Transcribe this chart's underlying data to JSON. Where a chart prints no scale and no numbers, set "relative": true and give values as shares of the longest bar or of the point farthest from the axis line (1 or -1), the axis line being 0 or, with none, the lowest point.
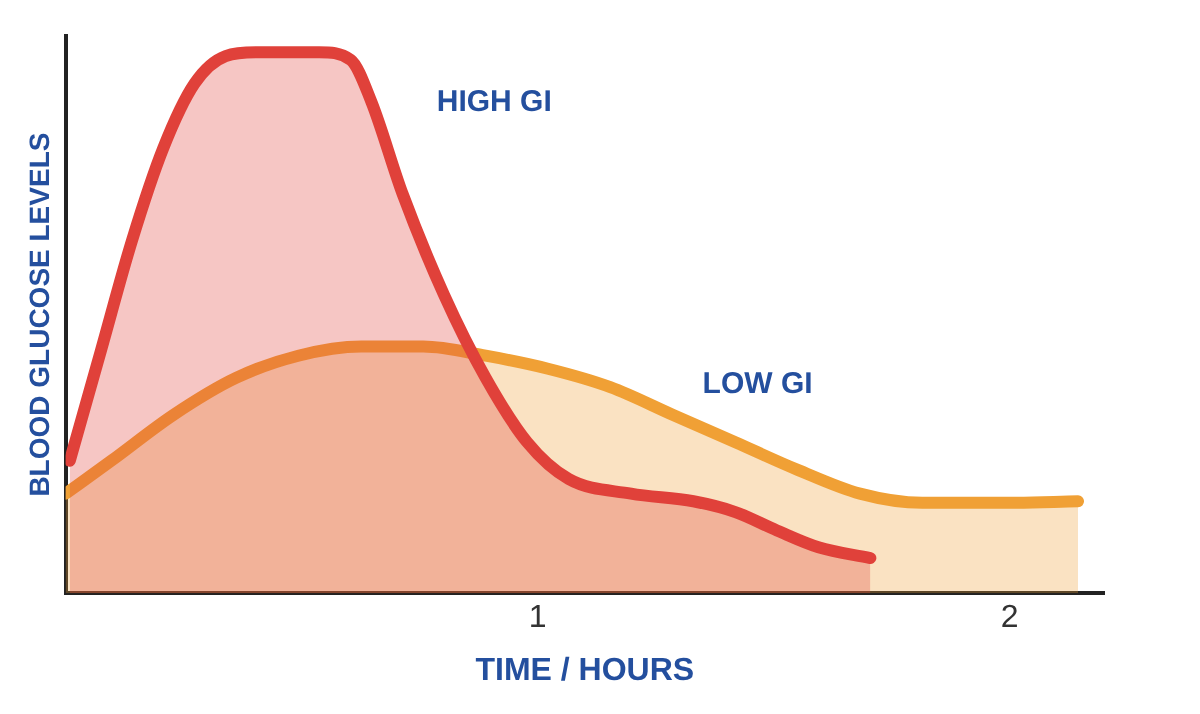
{
  "chart_data": {
    "type": "area",
    "xlabel": "TIME / HOURS",
    "ylabel": "BLOOD GLUCOSE LEVELS",
    "relative": true,
    "xlim": [
      0,
      2.2
    ],
    "xticks": [
      1,
      2
    ],
    "grid": false,
    "legend": false,
    "marker": "none",
    "line_style": "solid",
    "series": [
      {
        "name": "HIGH GI",
        "color": "#e0413a",
        "x": [
          0.009,
          0.075,
          0.141,
          0.207,
          0.273,
          0.339,
          0.405,
          0.537,
          0.604,
          0.648,
          0.714,
          0.802,
          0.89,
          0.978,
          1.066,
          1.198,
          1.33,
          1.419,
          1.507,
          1.595,
          1.705
        ],
        "values": [
          0.245,
          0.449,
          0.653,
          0.823,
          0.942,
          0.993,
          1,
          1,
          0.986,
          0.908,
          0.738,
          0.551,
          0.398,
          0.279,
          0.211,
          0.184,
          0.17,
          0.15,
          0.116,
          0.085,
          0.065
        ]
      },
      {
        "name": "LOW GI",
        "color": "#f0a035",
        "x": [
          0,
          0.097,
          0.229,
          0.361,
          0.493,
          0.626,
          0.758,
          0.89,
          1.022,
          1.154,
          1.286,
          1.419,
          1.551,
          1.683,
          1.815,
          1.991,
          2.145
        ],
        "values": [
          0.184,
          0.245,
          0.33,
          0.398,
          0.439,
          0.456,
          0.456,
          0.439,
          0.415,
          0.381,
          0.33,
          0.279,
          0.228,
          0.184,
          0.167,
          0.167,
          0.17
        ]
      }
    ]
  }
}
